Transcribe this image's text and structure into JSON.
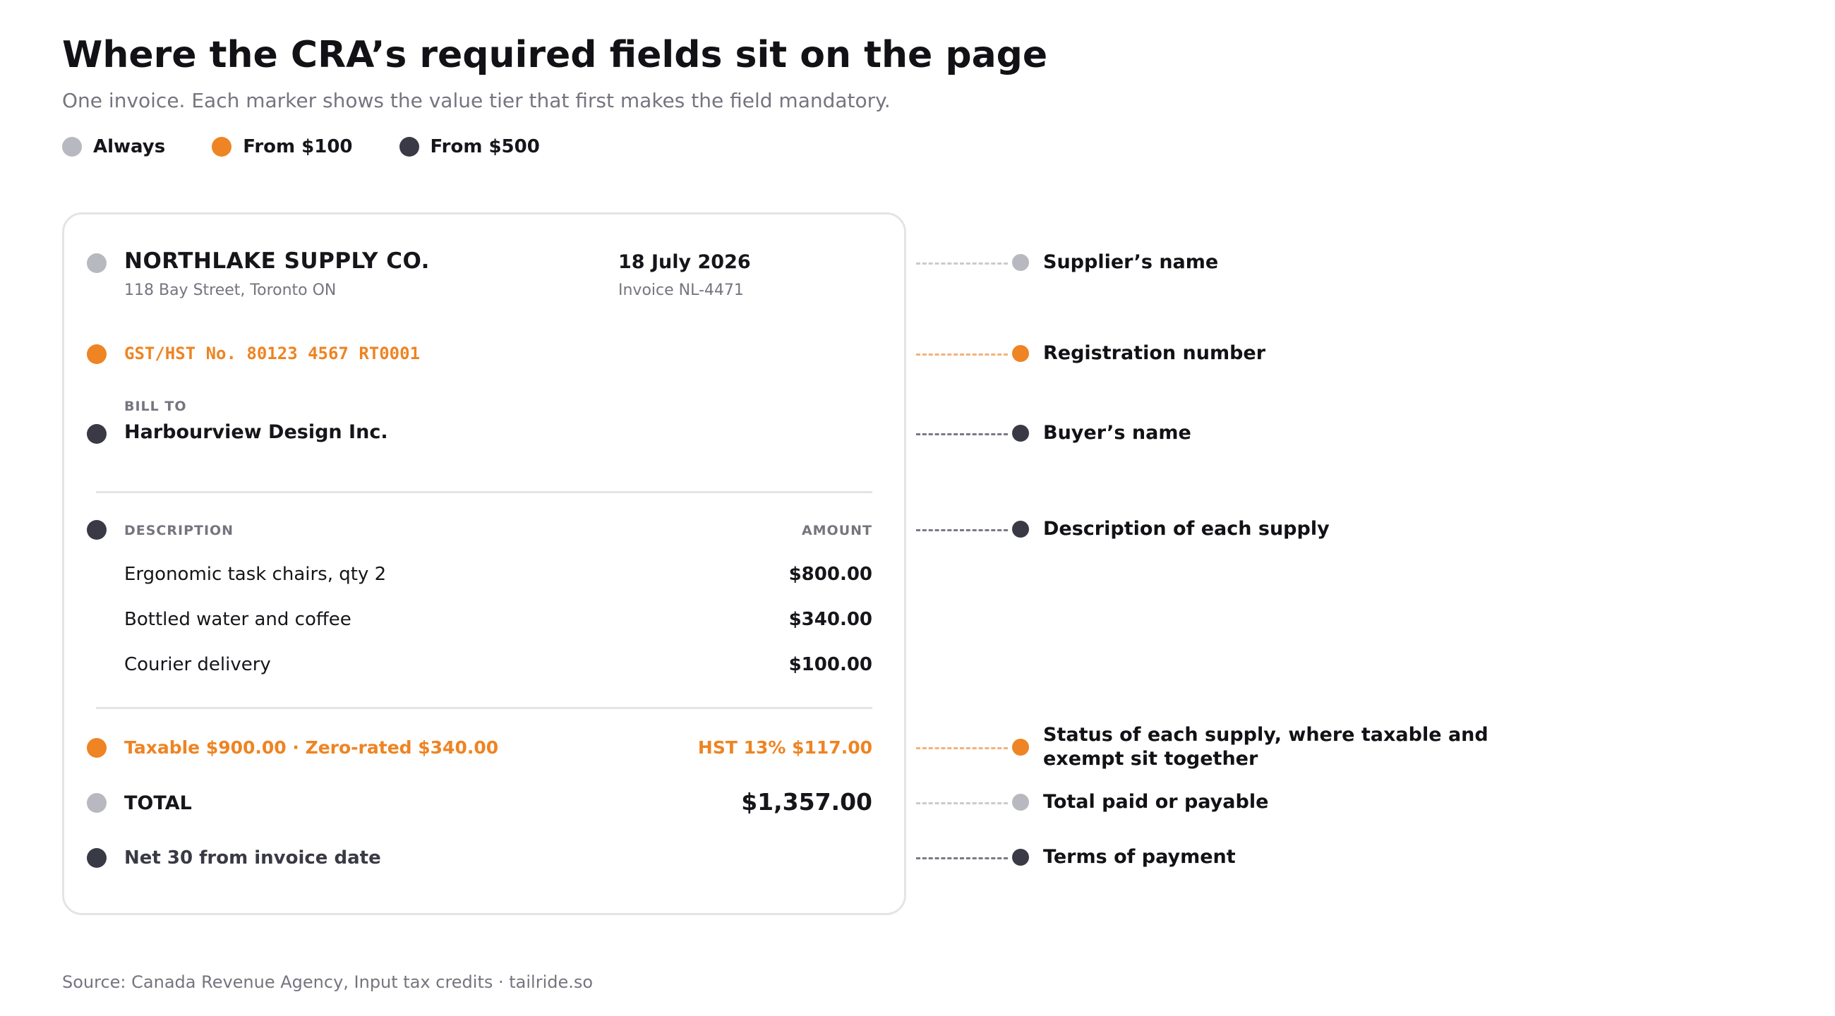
{
  "header": {
    "title": "Where the CRA’s required fields sit on the page",
    "subtitle": "One invoice. Each marker shows the value tier that first makes the field mandatory."
  },
  "legend": [
    {
      "label": "Always",
      "color": "#b8b8c0"
    },
    {
      "label": "From $100",
      "color": "#ee8423"
    },
    {
      "label": "From $500",
      "color": "#3a3a46"
    }
  ],
  "invoice": {
    "supplier_name": "NORTHLAKE SUPPLY CO.",
    "supplier_address": "118 Bay Street, Toronto ON",
    "date": "18 July 2026",
    "invoice_number": "Invoice NL-4471",
    "registration": "GST/HST No. 80123 4567 RT0001",
    "bill_to_label": "BILL TO",
    "buyer_name": "Harbourview Design Inc.",
    "description_header": "DESCRIPTION",
    "amount_header": "AMOUNT",
    "line_items": [
      {
        "description": "Ergonomic task chairs, qty 2",
        "amount": "$800.00"
      },
      {
        "description": "Bottled water and coffee",
        "amount": "$340.00"
      },
      {
        "description": "Courier delivery",
        "amount": "$100.00"
      }
    ],
    "tax_status": "Taxable $900.00 · Zero-rated $340.00",
    "tax_amount": "HST 13% $117.00",
    "total_label": "TOTAL",
    "total_value": "$1,357.00",
    "terms": "Net 30 from invoice date"
  },
  "fields": [
    {
      "label": "Supplier’s name",
      "tier": "Always"
    },
    {
      "label": "Registration number",
      "tier": "From $100"
    },
    {
      "label": "Buyer’s name",
      "tier": "From $500"
    },
    {
      "label": "Description of each supply",
      "tier": "From $500"
    },
    {
      "label": "Status of each supply, where taxable and exempt sit together",
      "tier": "From $100"
    },
    {
      "label": "Total paid or payable",
      "tier": "Always"
    },
    {
      "label": "Terms of payment",
      "tier": "From $500"
    }
  ],
  "source": "Source: Canada Revenue Agency, Input tax credits · tailride.so"
}
